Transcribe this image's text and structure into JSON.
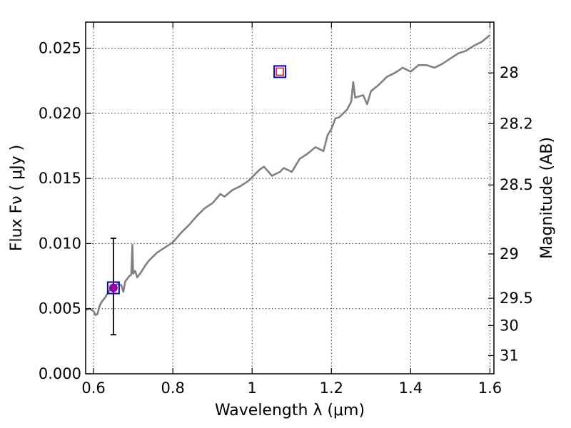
{
  "chart_data": {
    "type": "line",
    "xlabel": "Wavelength  λ (μm)",
    "ylabel_left": "Flux  Fν  ( μJy )",
    "ylabel_right": "Magnitude (AB)",
    "xlim": [
      0.58,
      1.61
    ],
    "ylim": [
      0.0,
      0.027
    ],
    "x_ticks": [
      0.6,
      0.8,
      1.0,
      1.2,
      1.4,
      1.6
    ],
    "x_tick_labels": [
      "0.6",
      "0.8",
      "1",
      "1.2",
      "1.4",
      "1.6"
    ],
    "y_ticks": [
      0.0,
      0.005,
      0.01,
      0.015,
      0.02,
      0.025
    ],
    "y_tick_labels": [
      "0.000",
      "0.005",
      "0.010",
      "0.015",
      "0.020",
      "0.025"
    ],
    "right_ticks": [
      {
        "label": "28",
        "flux": 0.0231
      },
      {
        "label": "28.2",
        "flux": 0.0192
      },
      {
        "label": "28.5",
        "flux": 0.0145
      },
      {
        "label": "29",
        "flux": 0.0092
      },
      {
        "label": "29.5",
        "flux": 0.0058
      },
      {
        "label": "30",
        "flux": 0.0037
      },
      {
        "label": "31",
        "flux": 0.0014
      }
    ],
    "grid": true,
    "colors": {
      "spectrum": "#808080",
      "box": "#0000cc",
      "inner_box": "#ff0000",
      "point": "#990099",
      "errorbar": "#000000"
    },
    "spectrum": {
      "x": [
        0.58,
        0.59,
        0.6,
        0.605,
        0.61,
        0.615,
        0.62,
        0.63,
        0.64,
        0.65,
        0.66,
        0.67,
        0.675,
        0.68,
        0.69,
        0.695,
        0.698,
        0.7,
        0.705,
        0.71,
        0.72,
        0.73,
        0.74,
        0.75,
        0.76,
        0.78,
        0.8,
        0.82,
        0.84,
        0.86,
        0.88,
        0.9,
        0.92,
        0.93,
        0.95,
        0.97,
        0.99,
        1.0,
        1.02,
        1.03,
        1.05,
        1.07,
        1.08,
        1.1,
        1.12,
        1.14,
        1.16,
        1.18,
        1.19,
        1.2,
        1.21,
        1.22,
        1.24,
        1.25,
        1.255,
        1.26,
        1.28,
        1.29,
        1.3,
        1.32,
        1.34,
        1.36,
        1.38,
        1.4,
        1.42,
        1.44,
        1.46,
        1.48,
        1.5,
        1.52,
        1.54,
        1.56,
        1.58,
        1.6
      ],
      "y": [
        0.0049,
        0.005,
        0.0048,
        0.0045,
        0.0046,
        0.0052,
        0.0055,
        0.0059,
        0.0064,
        0.0066,
        0.0069,
        0.0068,
        0.0063,
        0.0071,
        0.0075,
        0.0076,
        0.0099,
        0.0077,
        0.0079,
        0.0074,
        0.0078,
        0.0083,
        0.0087,
        0.009,
        0.0093,
        0.0097,
        0.0101,
        0.0108,
        0.0114,
        0.0121,
        0.0127,
        0.0131,
        0.0138,
        0.0136,
        0.0141,
        0.0144,
        0.0148,
        0.0151,
        0.0157,
        0.0159,
        0.0152,
        0.0155,
        0.0158,
        0.0155,
        0.0165,
        0.0169,
        0.0174,
        0.0171,
        0.0183,
        0.0188,
        0.0196,
        0.0197,
        0.0203,
        0.0209,
        0.0224,
        0.0212,
        0.0214,
        0.0207,
        0.0217,
        0.0222,
        0.0228,
        0.0231,
        0.0235,
        0.0232,
        0.0237,
        0.0237,
        0.0235,
        0.0238,
        0.0242,
        0.0246,
        0.0248,
        0.0252,
        0.0255,
        0.026
      ]
    },
    "photometry": [
      {
        "x": 0.65,
        "y": 0.0066,
        "yerr_low": 0.003,
        "yerr_high": 0.0104,
        "filled": true
      },
      {
        "x": 1.07,
        "y": 0.0232,
        "filled": false
      }
    ]
  }
}
